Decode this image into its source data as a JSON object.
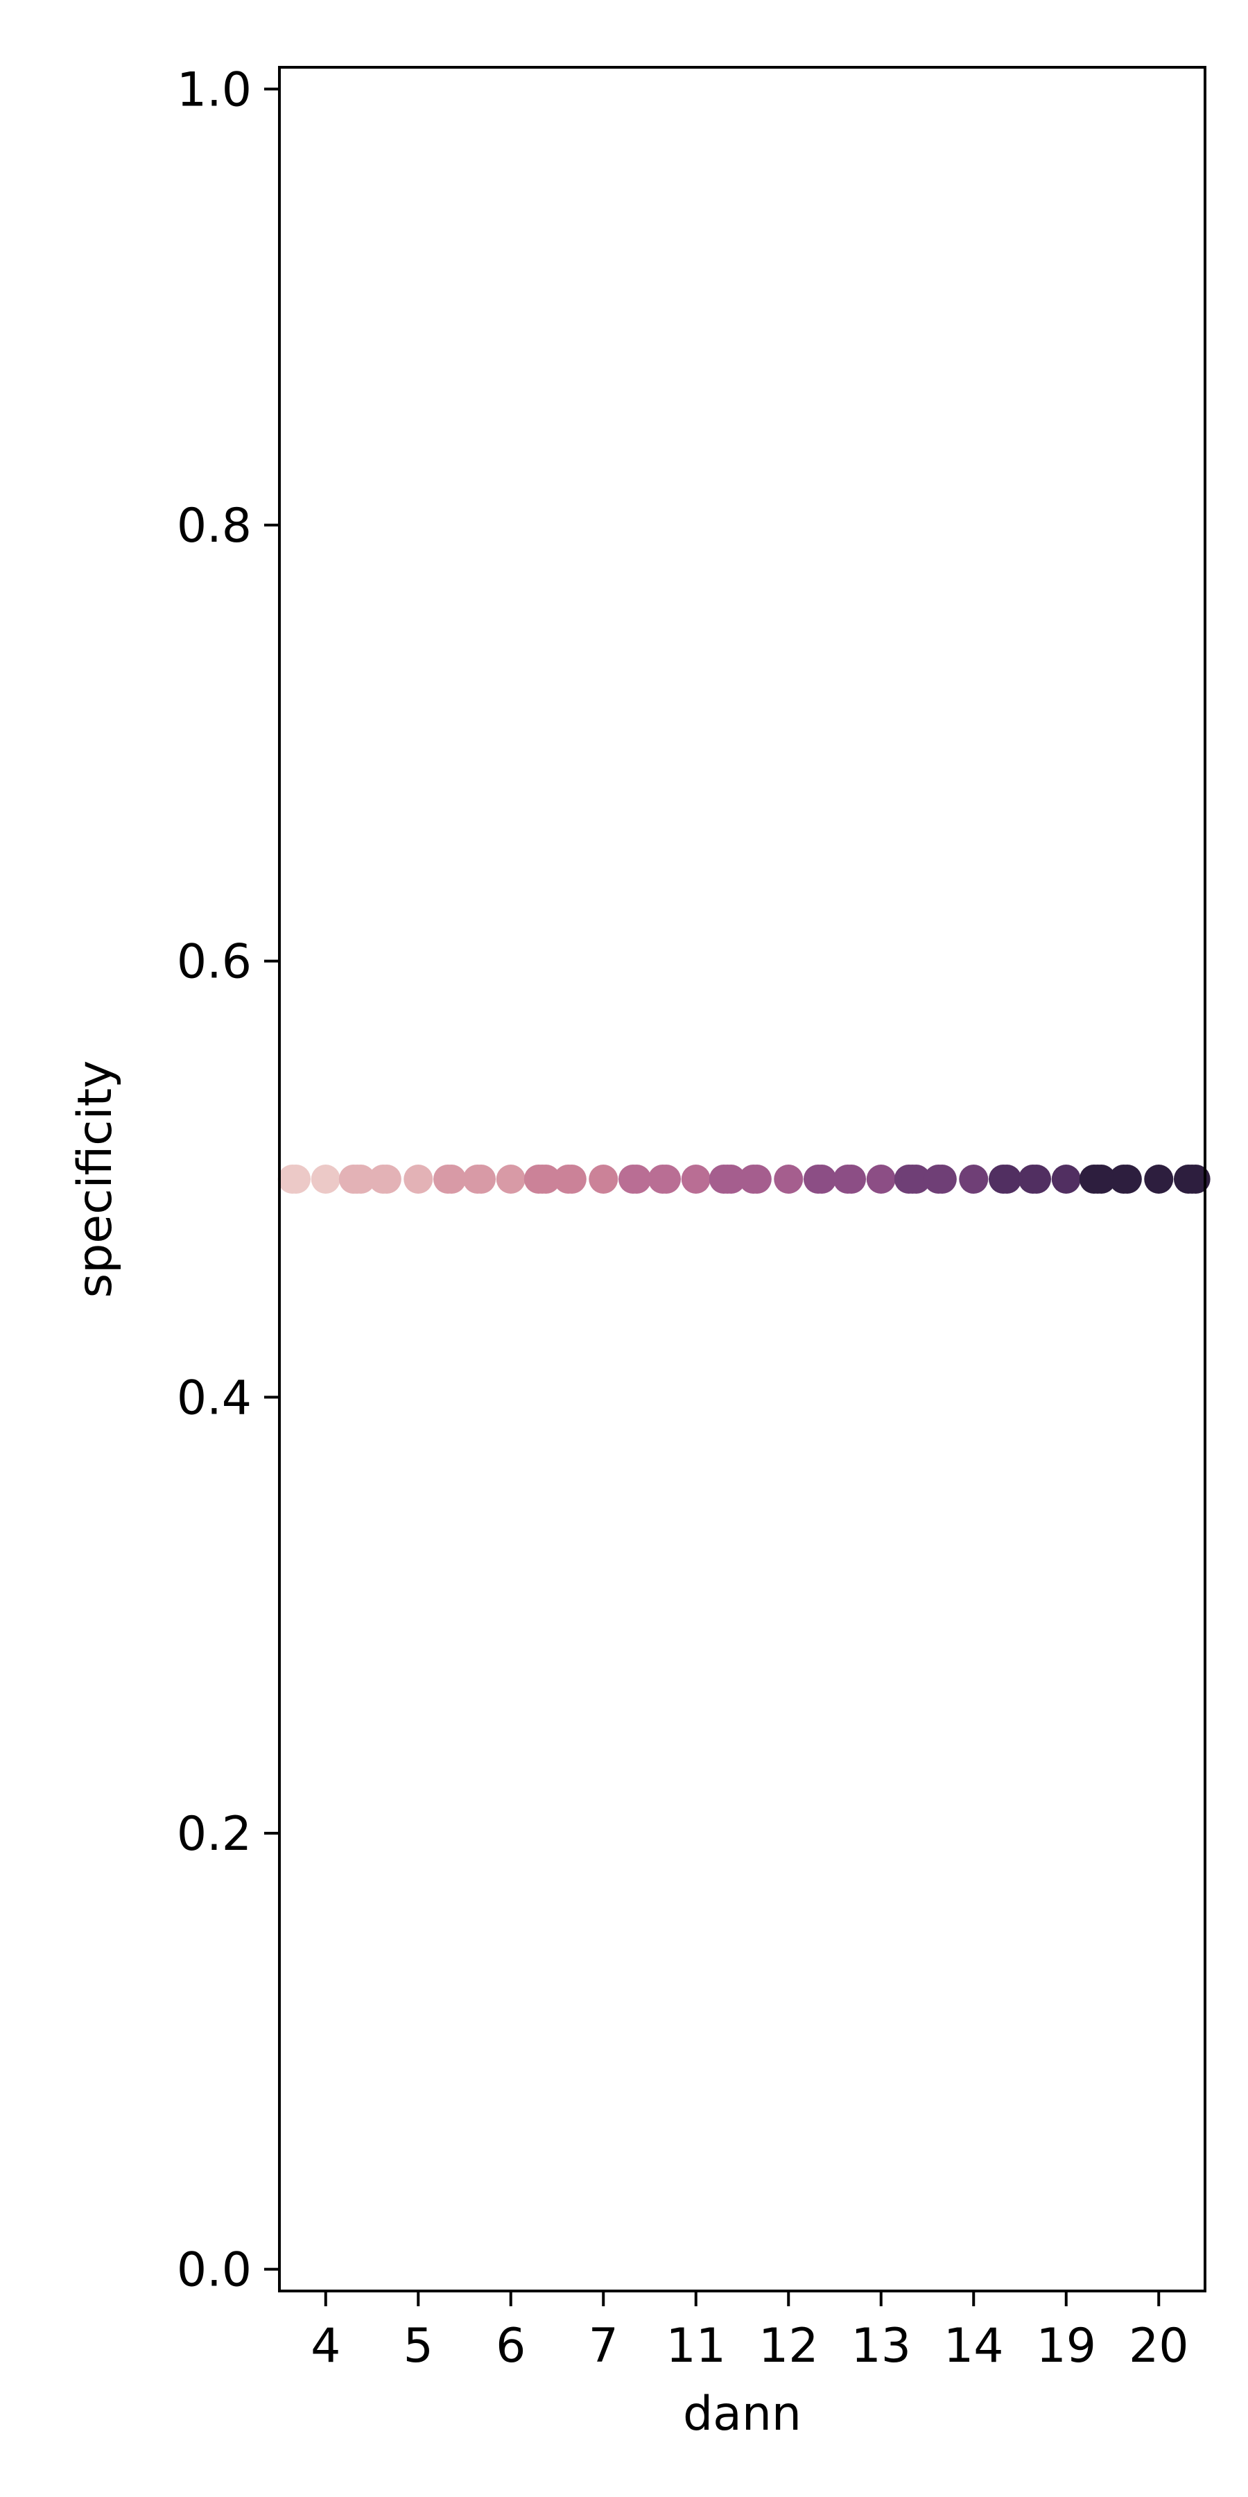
{
  "chart_data": {
    "type": "scatter",
    "title": "",
    "xlabel": "dann",
    "ylabel": "specificity",
    "x_categories": [
      "4",
      "5",
      "6",
      "7",
      "11",
      "12",
      "13",
      "14",
      "19",
      "20"
    ],
    "y_ticks": [
      "0.0",
      "0.2",
      "0.4",
      "0.6",
      "0.8",
      "1.0"
    ],
    "ylim": [
      -0.01,
      1.01
    ],
    "grid": false,
    "legend": "none",
    "points": [
      {
        "category": "4",
        "offsets": [
          -0.36,
          -0.32,
          0.0,
          0.3,
          0.34,
          0.38
        ]
      },
      {
        "category": "5",
        "offsets": [
          -0.38,
          -0.34,
          0.0,
          0.32,
          0.36
        ]
      },
      {
        "category": "6",
        "offsets": [
          -0.36,
          -0.32,
          0.0,
          0.3,
          0.34,
          0.38
        ]
      },
      {
        "category": "7",
        "offsets": [
          -0.38,
          -0.34,
          0.0,
          0.32,
          0.36
        ]
      },
      {
        "category": "11",
        "offsets": [
          -0.36,
          -0.32,
          0.0,
          0.3,
          0.34,
          0.38
        ]
      },
      {
        "category": "12",
        "offsets": [
          -0.38,
          -0.34,
          0.0,
          0.32,
          0.36
        ]
      },
      {
        "category": "13",
        "offsets": [
          -0.36,
          -0.32,
          0.0,
          0.3,
          0.34,
          0.38
        ]
      },
      {
        "category": "14",
        "offsets": [
          -0.38,
          -0.34,
          0.0,
          0.32,
          0.36
        ]
      },
      {
        "category": "19",
        "offsets": [
          -0.36,
          -0.32,
          0.0,
          0.3,
          0.34,
          0.38
        ]
      },
      {
        "category": "20",
        "offsets": [
          -0.38,
          -0.34,
          0.0,
          0.32,
          0.36,
          0.4
        ]
      }
    ],
    "y_value": 0.5,
    "colormap": [
      "#ecc9c7",
      "#e3b2b6",
      "#d89aa6",
      "#cb8298",
      "#b96e94",
      "#a55e8e",
      "#8c4e85",
      "#6f3f76",
      "#512f61",
      "#2d1e3e"
    ]
  }
}
